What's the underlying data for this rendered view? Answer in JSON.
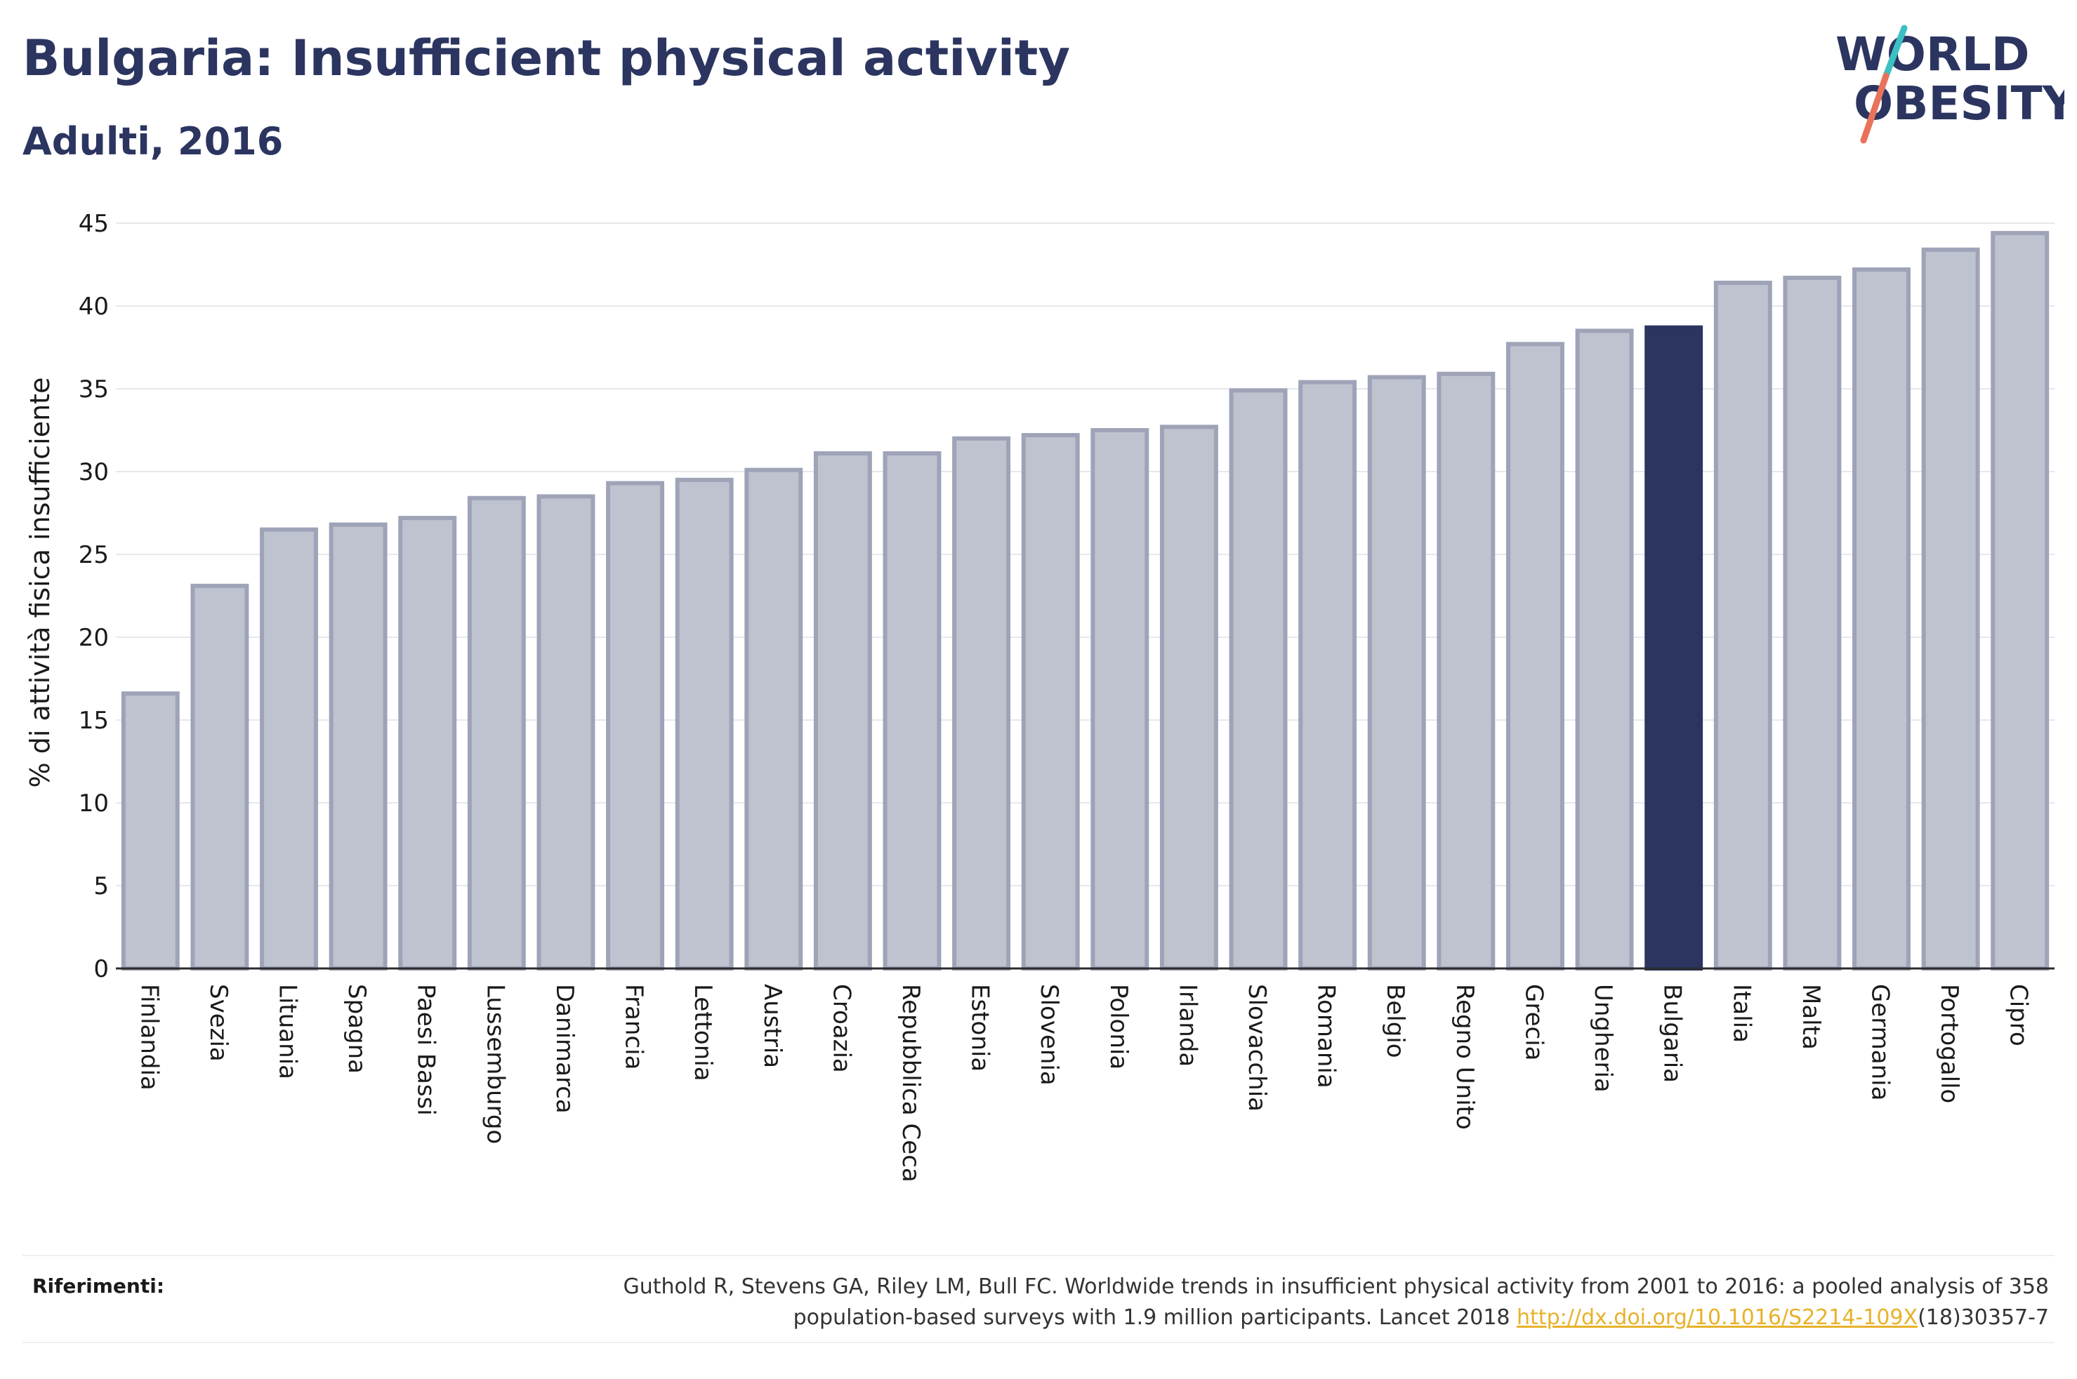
{
  "title": "Bulgaria: Insufficient physical activity",
  "subtitle": "Adulti, 2016",
  "logo": {
    "line1": "WORLD",
    "line2": "OBESITY"
  },
  "references": {
    "label": "Riferimenti:",
    "text_line1": "Guthold R, Stevens GA, Riley LM, Bull FC. Worldwide trends in insufficient physical activity from 2001 to 2016: a pooled analysis of 358",
    "text_line2_before": "population-based surveys with 1.9 million participants. Lancet 2018 ",
    "link": "http://dx.doi.org/10.1016/S2214-109X",
    "text_line2_after": "(18)30357-7"
  },
  "colors": {
    "highlight": "#2b3560",
    "bar_fill": "#bfc2cf",
    "bar_stroke": "#9ea3b8",
    "grid": "#e6e8ec",
    "logo_navy": "#2b3560",
    "logo_teal": "#3cc0c4",
    "logo_coral": "#e8735a",
    "link": "#e7b22a"
  },
  "chart_data": {
    "type": "bar",
    "ylabel": "% di attività fisica insufficiente",
    "xlabel": "",
    "ylim": [
      0,
      45
    ],
    "yticks": [
      0,
      5,
      10,
      15,
      20,
      25,
      30,
      35,
      40,
      45
    ],
    "grid": true,
    "highlight_category": "Bulgaria",
    "categories": [
      "Finlandia",
      "Svezia",
      "Lituania",
      "Spagna",
      "Paesi Bassi",
      "Lussemburgo",
      "Danimarca",
      "Francia",
      "Lettonia",
      "Austria",
      "Croazia",
      "Repubblica Ceca",
      "Estonia",
      "Slovenia",
      "Polonia",
      "Irlanda",
      "Slovacchia",
      "Romania",
      "Belgio",
      "Regno Unito",
      "Grecia",
      "Ungheria",
      "Bulgaria",
      "Italia",
      "Malta",
      "Germania",
      "Portogallo",
      "Cipro"
    ],
    "values": [
      16.6,
      23.1,
      26.5,
      26.8,
      27.2,
      28.4,
      28.5,
      29.3,
      29.5,
      30.1,
      31.1,
      31.1,
      32.0,
      32.2,
      32.5,
      32.7,
      34.9,
      35.4,
      35.7,
      35.9,
      37.7,
      38.5,
      38.7,
      41.4,
      41.7,
      42.2,
      43.4,
      44.4
    ]
  }
}
